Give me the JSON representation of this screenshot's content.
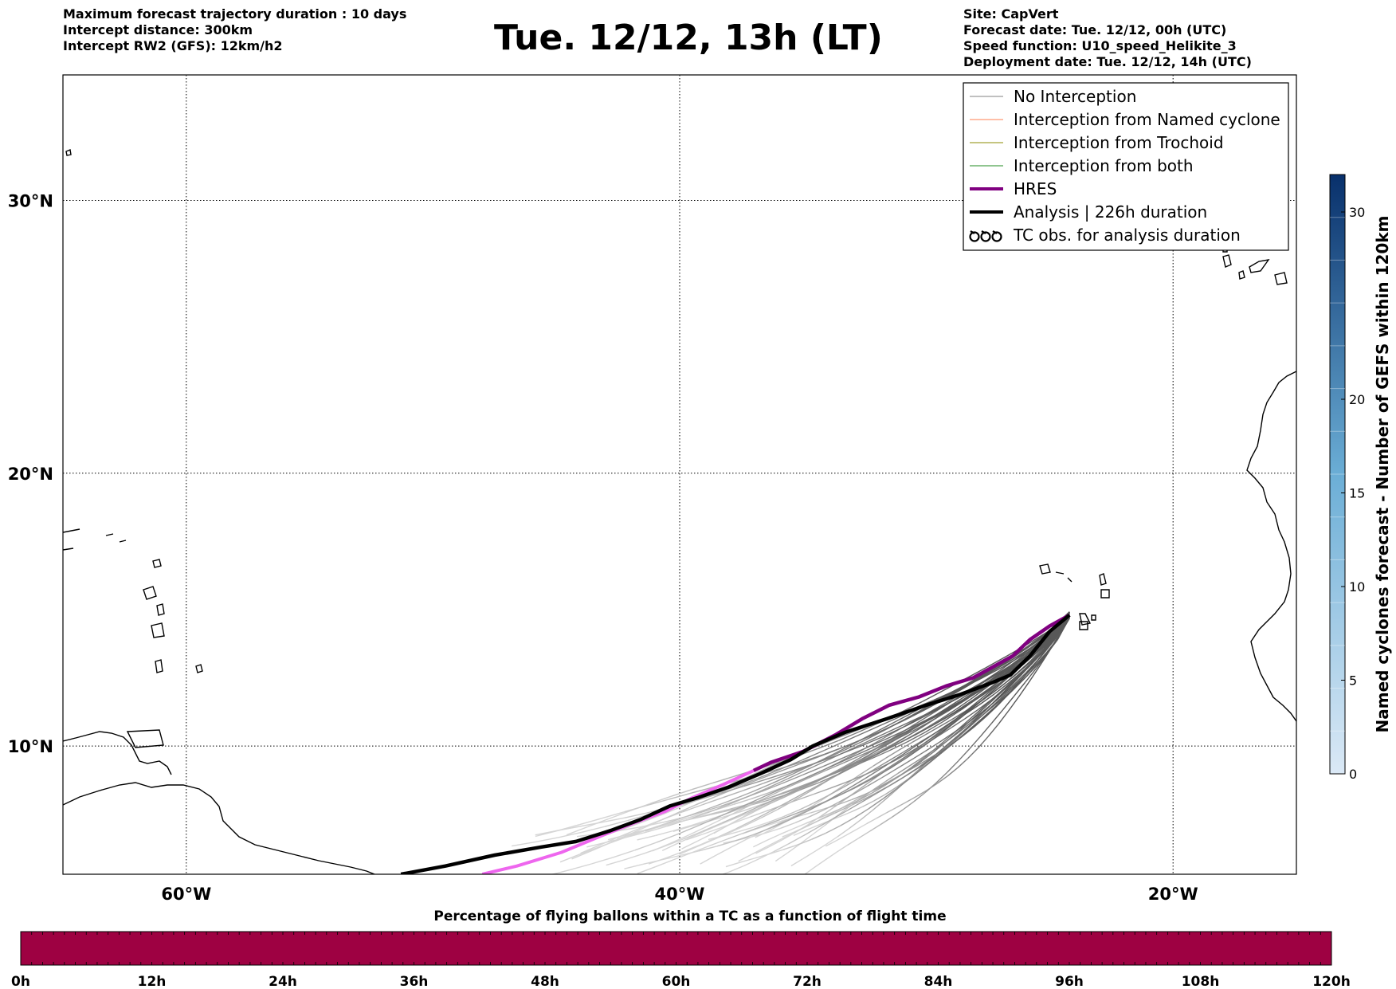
{
  "header": {
    "left_lines": [
      "Maximum forecast trajectory duration : 10 days",
      "Intercept distance: 300km",
      "Intercept RW2 (GFS):  12km/h2"
    ],
    "title": "Tue. 12/12, 13h (LT)",
    "right_lines": [
      "Site: CapVert",
      "Forecast date: Tue. 12/12, 00h (UTC)",
      "Speed function: U10_speed_Helikite_3",
      "Deployment date: Tue. 12/12, 14h (UTC)"
    ]
  },
  "map": {
    "lon_range": [
      -65,
      -15
    ],
    "lat_range": [
      5.3,
      34.6
    ],
    "lon_ticks": [
      {
        "value": -60,
        "label": "60°W"
      },
      {
        "value": -40,
        "label": "40°W"
      },
      {
        "value": -20,
        "label": "20°W"
      }
    ],
    "lat_ticks": [
      {
        "value": 10,
        "label": "10°N"
      },
      {
        "value": 20,
        "label": "20°N"
      },
      {
        "value": 30,
        "label": "30°N"
      }
    ],
    "grid": "dotted",
    "colors": {
      "no_interception": "#808080",
      "named_cyclone": "#ff7f50",
      "trochoid": "#8b8b00",
      "both": "#228b22",
      "hres_far": "#ee66ee",
      "hres": "#800080",
      "analysis": "#000000"
    }
  },
  "legend": {
    "placement": "top-right",
    "items": [
      {
        "label": "No Interception",
        "color": "#808080",
        "width": 1
      },
      {
        "label": "Interception from Named cyclone",
        "color": "#ff7f50",
        "width": 1
      },
      {
        "label": "Interception from Trochoid",
        "color": "#8b8b00",
        "width": 1
      },
      {
        "label": "Interception from both",
        "color": "#228b22",
        "width": 1
      },
      {
        "label": "HRES",
        "color": "#800080",
        "width": 4
      },
      {
        "label": "Analysis | 226h duration",
        "color": "#000000",
        "width": 4
      },
      {
        "label": "TC obs. for analysis duration",
        "icon": "tc-symbol-icon"
      }
    ]
  },
  "colorbar": {
    "title": "Named cyclones forecast - Number of GEFS within 120km",
    "ticks": [
      "0",
      "5",
      "10",
      "15",
      "20",
      "30"
    ],
    "tick_values": [
      0,
      5,
      10,
      15,
      20,
      30
    ],
    "max": 32,
    "color_low": "#dbe9f6",
    "color_high": "#08306b"
  },
  "percentage_bar": {
    "title": "Percentage of flying ballons within a TC as a function of flight time",
    "labels": [
      "0h",
      "12h",
      "24h",
      "36h",
      "48h",
      "60h",
      "72h",
      "84h",
      "96h",
      "108h",
      "120h"
    ],
    "fill_color": "#9e0142"
  },
  "trajectories": {
    "analysis": [
      [
        -24.2,
        14.8
      ],
      [
        -25.0,
        14.2
      ],
      [
        -25.8,
        13.3
      ],
      [
        -26.6,
        12.6
      ],
      [
        -27.4,
        12.3
      ],
      [
        -28.6,
        11.9
      ],
      [
        -30.0,
        11.5
      ],
      [
        -31.6,
        11.0
      ],
      [
        -33.3,
        10.5
      ],
      [
        -34.6,
        10.0
      ],
      [
        -35.5,
        9.5
      ],
      [
        -36.7,
        9.0
      ],
      [
        -38.0,
        8.5
      ],
      [
        -39.3,
        8.1
      ],
      [
        -40.4,
        7.8
      ],
      [
        -41.6,
        7.3
      ],
      [
        -42.8,
        6.9
      ],
      [
        -44.2,
        6.5
      ],
      [
        -45.6,
        6.3
      ],
      [
        -47.5,
        6.0
      ],
      [
        -49.5,
        5.6
      ],
      [
        -51.3,
        5.3
      ]
    ],
    "hres": [
      [
        -24.2,
        14.8
      ],
      [
        -25.0,
        14.4
      ],
      [
        -25.8,
        13.9
      ],
      [
        -26.5,
        13.3
      ],
      [
        -27.3,
        12.9
      ],
      [
        -28.1,
        12.5
      ],
      [
        -29.2,
        12.2
      ],
      [
        -30.3,
        11.8
      ],
      [
        -31.5,
        11.5
      ],
      [
        -32.6,
        11.0
      ],
      [
        -33.7,
        10.4
      ],
      [
        -35.0,
        9.8
      ],
      [
        -36.3,
        9.4
      ],
      [
        -37.0,
        9.1
      ]
    ],
    "hres_far": [
      [
        -37.0,
        9.1
      ],
      [
        -38.2,
        8.6
      ],
      [
        -39.5,
        8.1
      ],
      [
        -40.6,
        7.6
      ],
      [
        -41.8,
        7.2
      ],
      [
        -43.2,
        6.7
      ],
      [
        -44.8,
        6.1
      ],
      [
        -46.6,
        5.6
      ],
      [
        -48.0,
        5.3
      ]
    ]
  }
}
